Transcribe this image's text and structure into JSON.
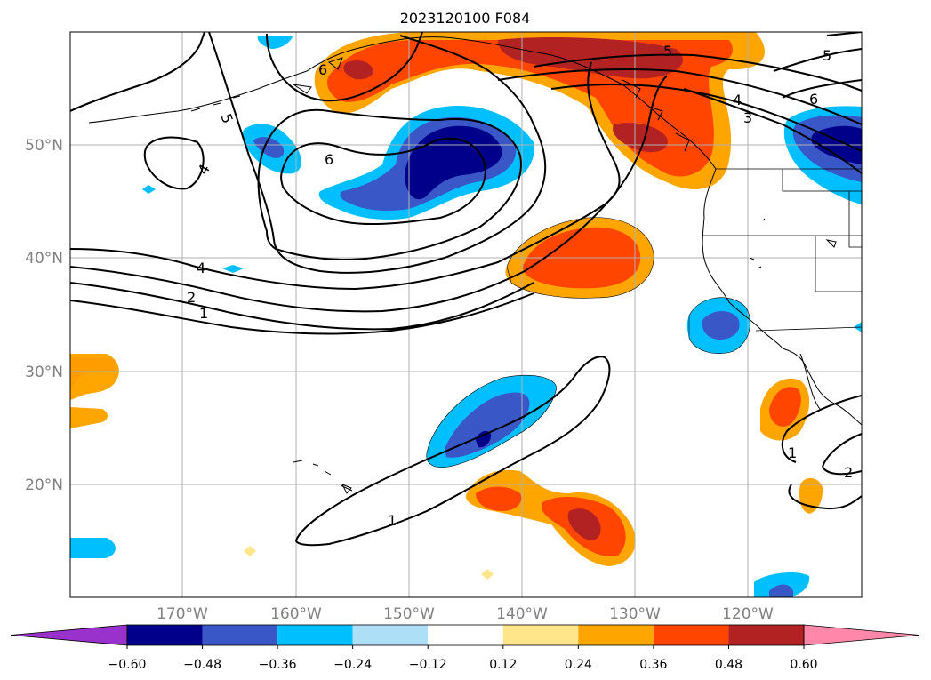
{
  "title": "2023120100 F084",
  "latitude_labels": [
    "50°N",
    "40°N",
    "30°N",
    "20°N"
  ],
  "longitude_labels": [
    "170°W",
    "160°W",
    "150°W",
    "140°W",
    "130°W",
    "120°W"
  ],
  "colorbar": {
    "tick_labels": [
      "−0.60",
      "−0.48",
      "−0.36",
      "−0.24",
      "−0.12",
      "0.12",
      "0.24",
      "0.36",
      "0.48",
      "0.60"
    ],
    "colors": [
      "#9932CC",
      "#00008B",
      "#3A57C8",
      "#00BFFF",
      "#ADDFF7",
      "#FFFFFF",
      "#FFE68A",
      "#FFA500",
      "#FF4500",
      "#B22222",
      "#FF88AA"
    ]
  },
  "contour_labels": [
    "6",
    "5",
    "4",
    "6",
    "4",
    "2",
    "1",
    "5",
    "4",
    "3",
    "6",
    "5",
    "1",
    "1",
    "2"
  ],
  "colors": {
    "contour": "#000000",
    "grid": "#b0b0b0",
    "coast": "#000000"
  }
}
